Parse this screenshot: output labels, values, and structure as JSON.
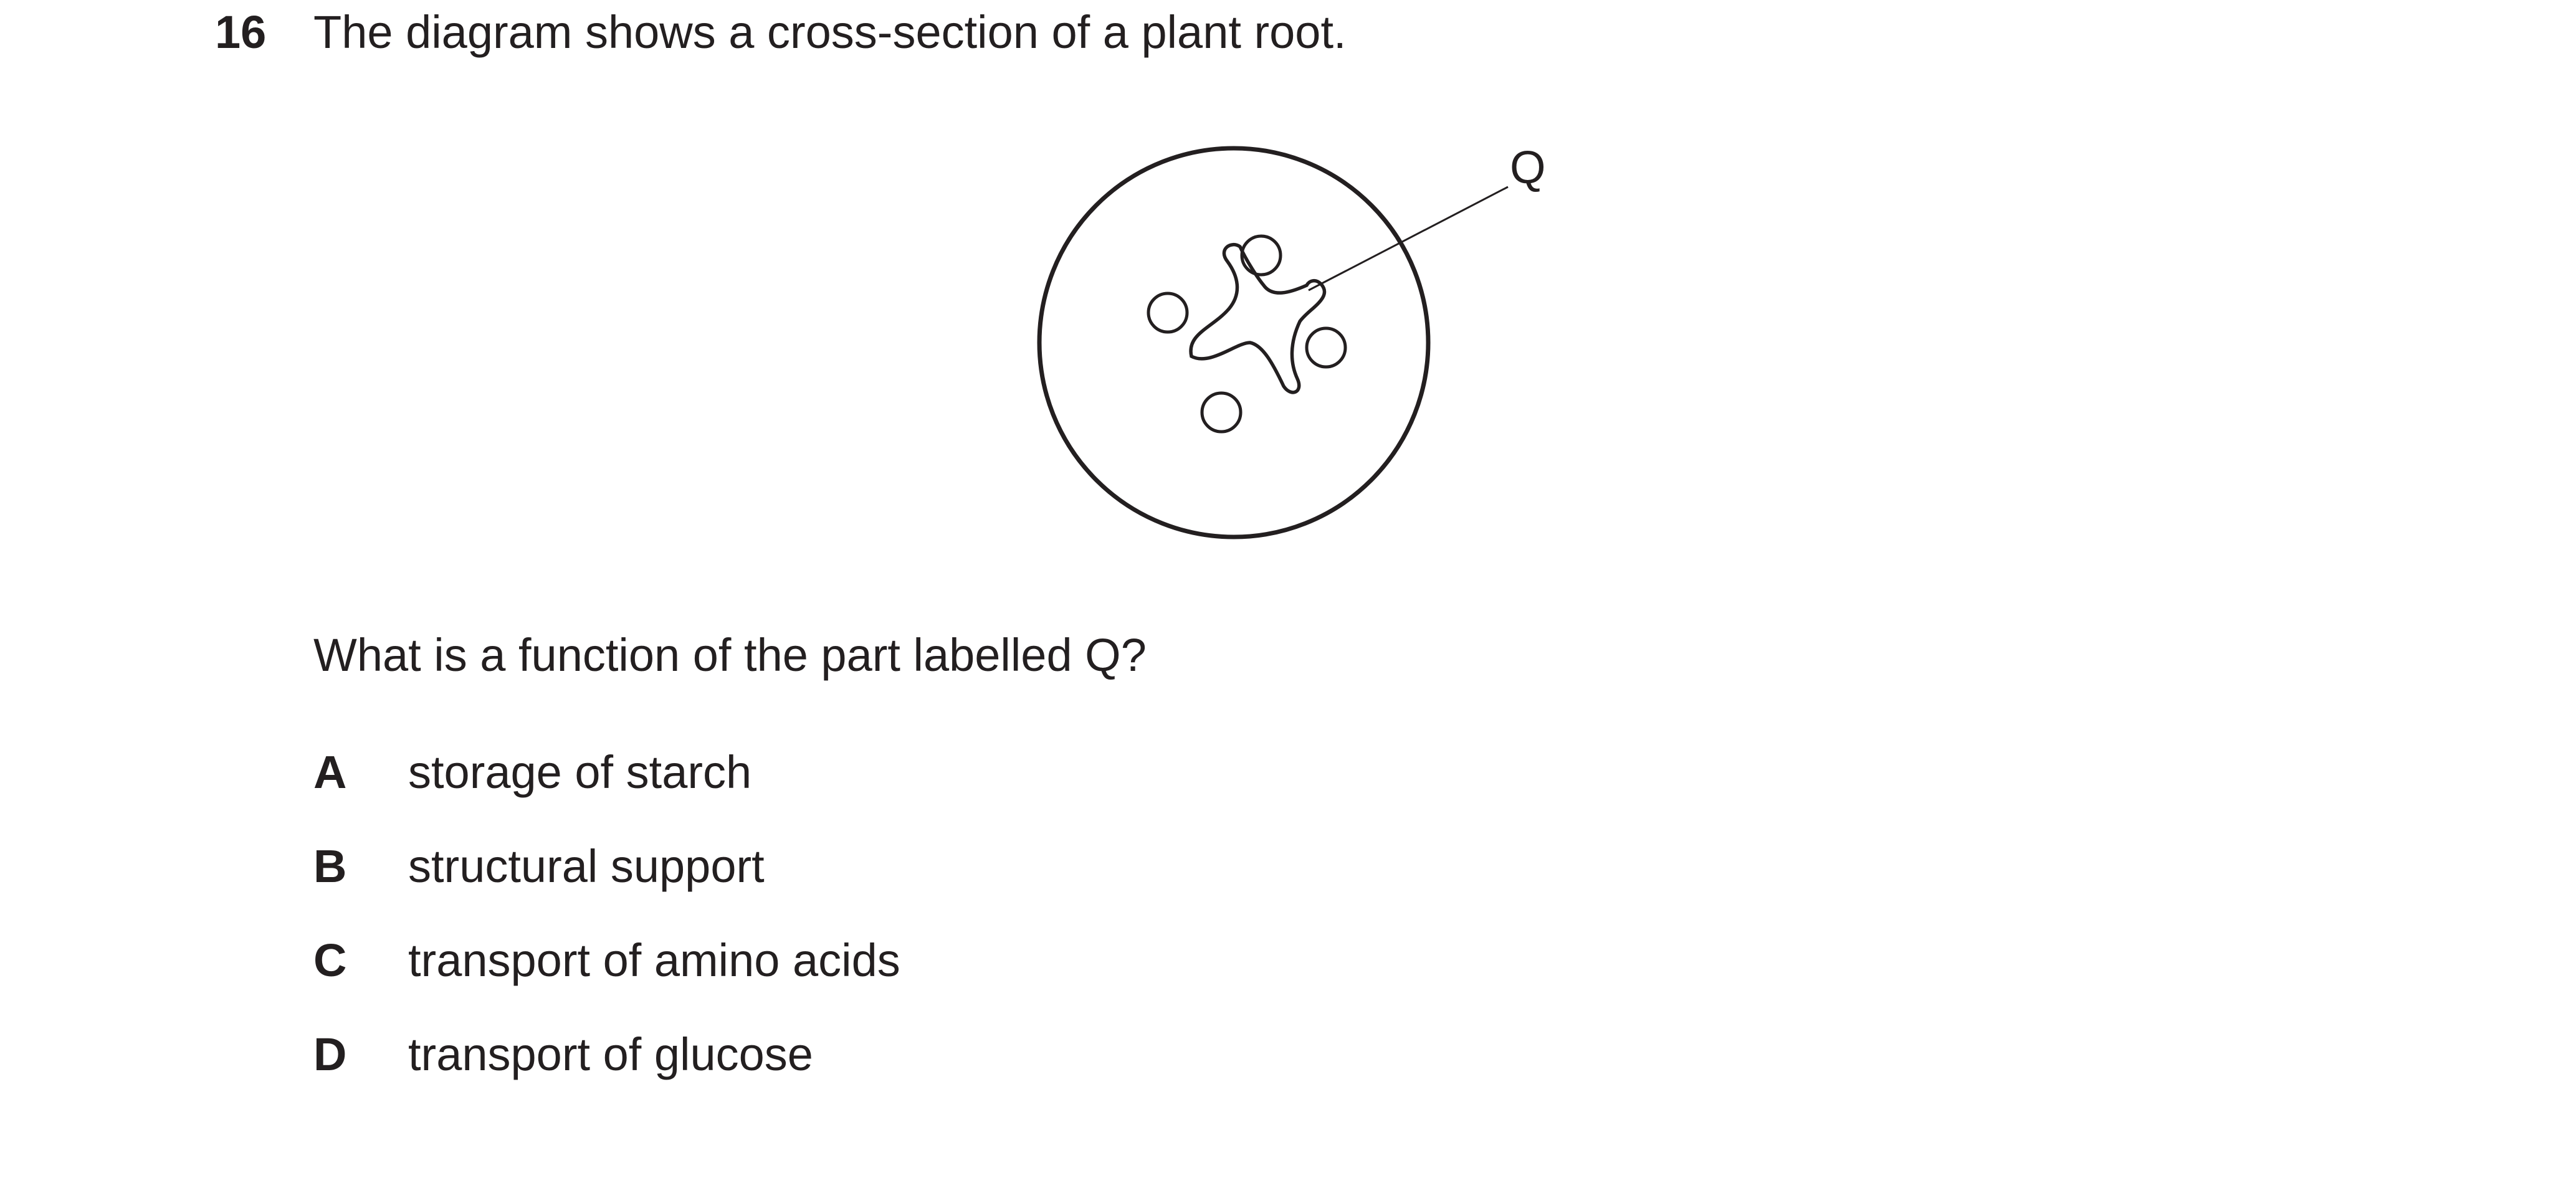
{
  "question": {
    "number": "16",
    "text": "The diagram shows a cross-section of a plant root.",
    "prompt": "What is a function of the part labelled Q?"
  },
  "diagram": {
    "label": "Q"
  },
  "options": [
    {
      "letter": "A",
      "text": "storage of starch"
    },
    {
      "letter": "B",
      "text": "structural support"
    },
    {
      "letter": "C",
      "text": "transport of amino acids"
    },
    {
      "letter": "D",
      "text": "transport of glucose"
    }
  ],
  "colors": {
    "text": "#231f20",
    "background": "#ffffff"
  }
}
